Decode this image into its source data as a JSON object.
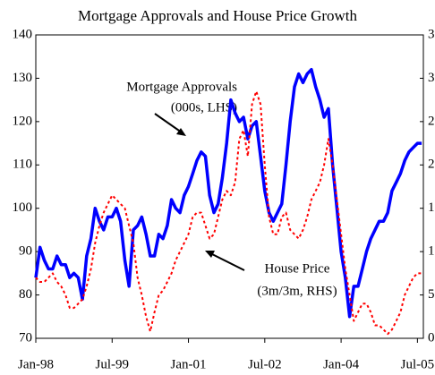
{
  "chart_data": {
    "type": "line",
    "title": "Mortgage Approvals and House Price Growth",
    "annotations": [
      {
        "lines": [
          "Mortgage Approvals",
          "(000s, LHS)"
        ]
      },
      {
        "lines": [
          "House Price",
          "(3m/3m, RHS)"
        ]
      }
    ],
    "categories": [
      "Jan-98",
      null,
      null,
      null,
      null,
      null,
      null,
      null,
      null,
      null,
      null,
      null,
      null,
      null,
      null,
      null,
      null,
      null,
      "Jul-99",
      null,
      null,
      null,
      null,
      null,
      null,
      null,
      null,
      null,
      null,
      null,
      null,
      null,
      null,
      null,
      null,
      null,
      "Jan-01",
      null,
      null,
      null,
      null,
      null,
      null,
      null,
      null,
      null,
      null,
      null,
      null,
      null,
      null,
      null,
      null,
      null,
      "Jul-02",
      null,
      null,
      null,
      null,
      null,
      null,
      null,
      null,
      null,
      null,
      null,
      null,
      null,
      null,
      null,
      null,
      null,
      "Jan-04",
      null,
      null,
      null,
      null,
      null,
      null,
      null,
      null,
      null,
      null,
      null,
      null,
      null,
      null,
      null,
      null,
      null,
      "Jul-05",
      null
    ],
    "series": [
      {
        "color": "#0000ff",
        "axis": "y",
        "style": "solid",
        "values": [
          84,
          91,
          88,
          86,
          86,
          89,
          87,
          87,
          84,
          85,
          84,
          79,
          89,
          93,
          100,
          97,
          95,
          98,
          98,
          100,
          97,
          88,
          82,
          95,
          96,
          98,
          94,
          89,
          89,
          94,
          93,
          96,
          102,
          100,
          99,
          103,
          105,
          108,
          111,
          113,
          112,
          103,
          99,
          101,
          107,
          115,
          125,
          122,
          120,
          121,
          116,
          119,
          120,
          112,
          104,
          99,
          97,
          99,
          101,
          110,
          120,
          128,
          131,
          129,
          131,
          132,
          128,
          125,
          121,
          123,
          110,
          100,
          90,
          84,
          75,
          82,
          82,
          86,
          90,
          93,
          95,
          97,
          97,
          99,
          104,
          106,
          108,
          111,
          113,
          114,
          115,
          115
        ]
      },
      {
        "color": "#ff0000",
        "axis": "y2",
        "style": "dotted",
        "values": [
          7,
          6.5,
          6.5,
          7,
          7.5,
          6.5,
          6,
          5,
          3.5,
          3.5,
          4,
          4.5,
          6,
          8,
          11,
          13,
          14.5,
          15.5,
          16.5,
          16,
          15.5,
          15,
          13,
          11,
          7,
          5,
          2.5,
          0.8,
          3,
          5,
          5.5,
          6.5,
          7.5,
          9,
          10,
          11,
          12,
          14,
          14.5,
          14.5,
          13,
          11.5,
          12,
          14,
          16,
          17,
          16.5,
          18,
          23,
          24,
          21,
          27,
          28.5,
          27,
          20,
          14,
          12,
          12,
          14,
          14.5,
          12.5,
          12,
          11.5,
          12.5,
          14,
          16,
          17,
          18,
          20,
          23,
          20,
          16,
          12,
          8,
          5,
          2,
          3,
          4,
          4,
          3,
          1.5,
          1.5,
          1,
          0.5,
          1,
          2,
          3,
          5,
          6,
          7,
          7.5,
          7.5
        ]
      }
    ],
    "ylim": [
      70,
      140
    ],
    "yticks": [
      70,
      80,
      90,
      100,
      110,
      120,
      130,
      140
    ],
    "y2lim": [
      0,
      35
    ],
    "y2ticks": [
      0,
      5,
      10,
      15,
      20,
      25,
      30,
      35
    ]
  }
}
